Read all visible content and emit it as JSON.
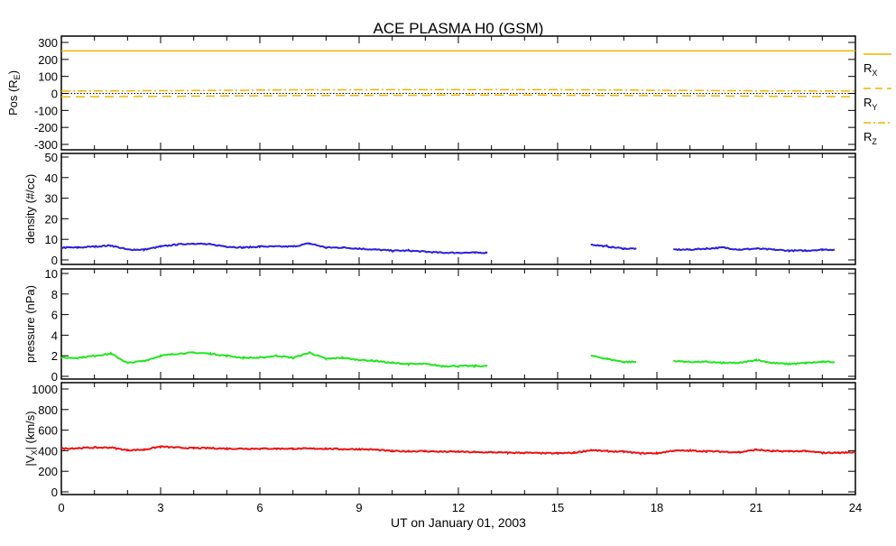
{
  "chart_data": {
    "title": "ACE PLASMA H0 (GSM)",
    "xlabel": "UT on January 01, 2003",
    "xlim": [
      0,
      24
    ],
    "xticks": [
      "0",
      "3",
      "6",
      "9",
      "12",
      "15",
      "18",
      "21",
      "24"
    ],
    "x": [
      0,
      0.5,
      1,
      1.5,
      2,
      2.5,
      3,
      3.5,
      4,
      4.5,
      5,
      5.5,
      6,
      6.5,
      7,
      7.5,
      8,
      8.5,
      9,
      9.5,
      10,
      10.5,
      11,
      11.5,
      12,
      12.5,
      13,
      13.5,
      14,
      14.5,
      15,
      15.5,
      16,
      16.5,
      17,
      17.5,
      18,
      18.5,
      19,
      19.5,
      20,
      20.5,
      21,
      21.5,
      22,
      22.5,
      23,
      23.5,
      24
    ],
    "panels": [
      {
        "type": "line",
        "ylabel": "Pos (R",
        "ylabel_sub": "E",
        "ylabel_end": ")",
        "ylim": [
          -300,
          300
        ],
        "yticks": [
          "300",
          "200",
          "100",
          "0",
          "-100",
          "-200",
          "-300"
        ],
        "legend_placement": "right",
        "series": [
          {
            "name": "R",
            "sub": "X",
            "color": "#f0b400",
            "style": "solid",
            "values": [
              250,
              250,
              250,
              250,
              250,
              250,
              250,
              250,
              250,
              250,
              250,
              250,
              250,
              250,
              250,
              250,
              250,
              250,
              250,
              250,
              250,
              250,
              250,
              250,
              250,
              250,
              250,
              250,
              250,
              250,
              250,
              250,
              250,
              250,
              250,
              250,
              250,
              250,
              250,
              250,
              250,
              250,
              250,
              250,
              250,
              250,
              250,
              250,
              250
            ]
          },
          {
            "name": "R",
            "sub": "Y",
            "color": "#f0b400",
            "style": "dashed",
            "values": [
              -20,
              -20,
              -19,
              -19,
              -18,
              -18,
              -17,
              -17,
              -16,
              -16,
              -15,
              -15,
              -14,
              -14,
              -13,
              -13,
              -12,
              -12,
              -12,
              -11,
              -11,
              -11,
              -11,
              -10,
              -10,
              -10,
              -10,
              -10,
              -10,
              -10,
              -11,
              -11,
              -11,
              -12,
              -12,
              -13,
              -13,
              -14,
              -14,
              -15,
              -15,
              -16,
              -16,
              -17,
              -17,
              -18,
              -18,
              -19,
              -19
            ]
          },
          {
            "name": "R",
            "sub": "Z",
            "color": "#f0b400",
            "style": "dashdot",
            "values": [
              14,
              14,
              15,
              15,
              15,
              16,
              16,
              16,
              17,
              17,
              18,
              18,
              20,
              20,
              21,
              21,
              21,
              21,
              21,
              22,
              22,
              22,
              22,
              22,
              22,
              22,
              22,
              22,
              22,
              22,
              22,
              21,
              21,
              20,
              20,
              19,
              18,
              18,
              17,
              17,
              16,
              16,
              15,
              15,
              15,
              14,
              14,
              14,
              14
            ]
          }
        ]
      },
      {
        "type": "line",
        "ylabel": "density (#/cc)",
        "ylim": [
          0,
          50
        ],
        "yticks": [
          "50",
          "40",
          "30",
          "20",
          "10",
          "0"
        ],
        "series": [
          {
            "name": "density",
            "color": "#2a1ee0",
            "values": [
              6,
              6,
              6.5,
              7,
              5,
              5,
              6.5,
              7.5,
              8,
              7.5,
              6.5,
              6,
              6.5,
              6.5,
              6.5,
              8,
              6,
              6,
              5.5,
              5,
              4.5,
              4.5,
              4,
              3.5,
              3.5,
              3.5,
              null,
              null,
              null,
              null,
              null,
              null,
              7.5,
              6.5,
              5.5,
              null,
              null,
              5,
              5,
              5.5,
              6,
              5,
              5.5,
              5,
              4.5,
              4.5,
              5,
              null,
              null
            ]
          }
        ]
      },
      {
        "type": "line",
        "ylabel": "pressure (nPa)",
        "ylim": [
          0,
          10
        ],
        "yticks": [
          "10",
          "8",
          "6",
          "4",
          "2",
          "0"
        ],
        "series": [
          {
            "name": "pressure",
            "color": "#22e61e",
            "values": [
              1.8,
              1.8,
              2,
              2.2,
              1.3,
              1.5,
              2,
              2.2,
              2.3,
              2.2,
              2,
              1.8,
              1.8,
              2,
              1.8,
              2.3,
              1.7,
              1.8,
              1.6,
              1.5,
              1.3,
              1.2,
              1.2,
              1,
              1,
              1,
              null,
              null,
              null,
              null,
              null,
              null,
              2,
              1.7,
              1.4,
              null,
              null,
              1.5,
              1.4,
              1.4,
              1.3,
              1.3,
              1.6,
              1.3,
              1.2,
              1.3,
              1.4,
              null,
              null
            ]
          }
        ]
      },
      {
        "type": "line",
        "ylabel": "|V",
        "ylabel_sub": "X",
        "ylabel_end": "| (km/s)",
        "ylim": [
          0,
          1000
        ],
        "yticks": [
          "1000",
          "800",
          "600",
          "400",
          "200",
          "0"
        ],
        "series": [
          {
            "name": "Vx",
            "color": "#ee1010",
            "values": [
              420,
              425,
              430,
              430,
              405,
              410,
              440,
              430,
              425,
              425,
              420,
              420,
              420,
              420,
              420,
              420,
              420,
              415,
              415,
              410,
              395,
              395,
              395,
              390,
              390,
              385,
              385,
              380,
              380,
              375,
              375,
              380,
              405,
              395,
              390,
              375,
              375,
              400,
              400,
              395,
              390,
              385,
              410,
              395,
              395,
              395,
              380,
              380,
              385
            ]
          }
        ]
      }
    ]
  }
}
